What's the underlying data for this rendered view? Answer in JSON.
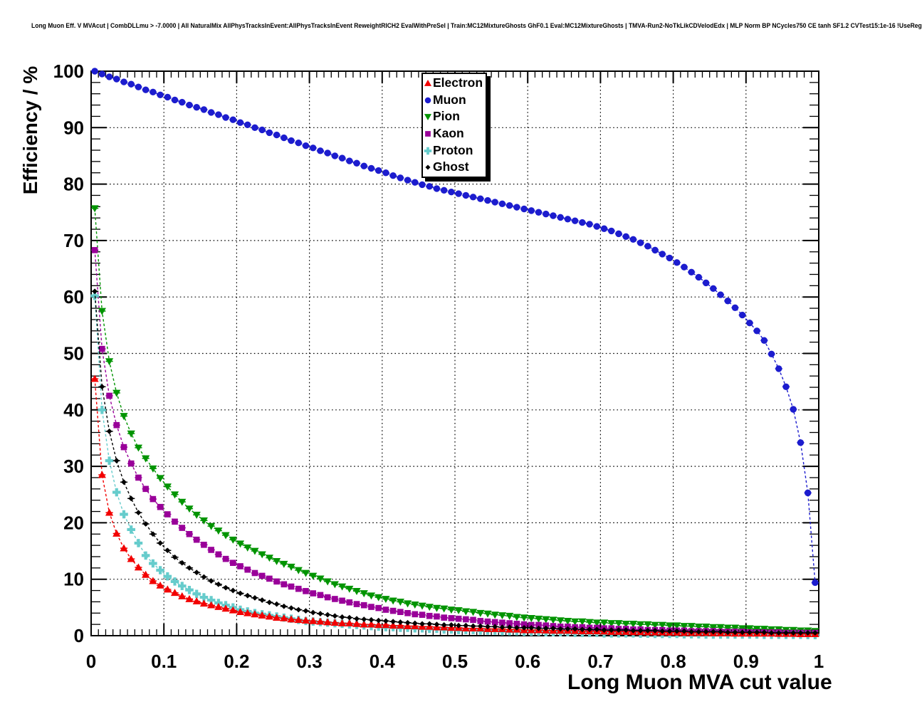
{
  "header": {
    "title": "Long Muon Eff. V MVAcut | CombDLLmu > -7.0000 | All NaturalMix AllPhysTracksInEvent:AllPhysTracksInEvent ReweightRICH2 EvalWithPreSel | Train:MC12MixtureGhosts GhF0.1 Eval:MC12MixtureGhosts | TMVA-Run2-NoTkLikCDVelodEdx | MLP Norm BP NCycles750 CE tanh SF1.2 CVTest15:1e-16 !UseReg"
  },
  "chart_data": {
    "type": "scatter",
    "title": "Long Muon Eff. V MVAcut",
    "xlabel": "Long Muon MVA cut value",
    "ylabel": "Efficiency / %",
    "xlim": [
      0,
      1
    ],
    "ylim": [
      0,
      100
    ],
    "grid": "dotted-major",
    "legend_position": "top-center",
    "frame_color": "#000000",
    "background_color": "#ffffff",
    "x_ticks": [
      0,
      0.1,
      0.2,
      0.3,
      0.4,
      0.5,
      0.6,
      0.7,
      0.8,
      0.9,
      1
    ],
    "x_tick_labels": [
      "0",
      "0.1",
      "0.2",
      "0.3",
      "0.4",
      "0.5",
      "0.6",
      "0.7",
      "0.8",
      "0.9",
      "1"
    ],
    "y_ticks": [
      0,
      10,
      20,
      30,
      40,
      50,
      60,
      70,
      80,
      90,
      100
    ],
    "y_tick_labels": [
      "0",
      "10",
      "20",
      "30",
      "40",
      "50",
      "60",
      "70",
      "80",
      "90",
      "100"
    ],
    "x_minor_step": 0.01,
    "y_minor_step": 2,
    "x": [
      0.005,
      0.015,
      0.025,
      0.035,
      0.045,
      0.055,
      0.065,
      0.075,
      0.085,
      0.095,
      0.105,
      0.115,
      0.125,
      0.135,
      0.145,
      0.155,
      0.165,
      0.175,
      0.185,
      0.195,
      0.205,
      0.215,
      0.225,
      0.235,
      0.245,
      0.255,
      0.265,
      0.275,
      0.285,
      0.295,
      0.305,
      0.315,
      0.325,
      0.335,
      0.345,
      0.355,
      0.365,
      0.375,
      0.385,
      0.395,
      0.405,
      0.415,
      0.425,
      0.435,
      0.445,
      0.455,
      0.465,
      0.475,
      0.485,
      0.495,
      0.505,
      0.515,
      0.525,
      0.535,
      0.545,
      0.555,
      0.565,
      0.575,
      0.585,
      0.595,
      0.605,
      0.615,
      0.625,
      0.635,
      0.645,
      0.655,
      0.665,
      0.675,
      0.685,
      0.695,
      0.705,
      0.715,
      0.725,
      0.735,
      0.745,
      0.755,
      0.765,
      0.775,
      0.785,
      0.795,
      0.805,
      0.815,
      0.825,
      0.835,
      0.845,
      0.855,
      0.865,
      0.875,
      0.885,
      0.895,
      0.905,
      0.915,
      0.925,
      0.935,
      0.945,
      0.955,
      0.965,
      0.975,
      0.985,
      0.995
    ],
    "series": [
      {
        "name": "Electron",
        "color": "#f20000",
        "marker": "triangle-up",
        "values": [
          45.5,
          28.5,
          21.8,
          18.1,
          15.5,
          13.6,
          12.1,
          10.8,
          9.7,
          8.9,
          8.2,
          7.6,
          7.0,
          6.5,
          6.1,
          5.7,
          5.4,
          5.1,
          4.8,
          4.5,
          4.2,
          4.0,
          3.8,
          3.6,
          3.4,
          3.2,
          3.1,
          2.9,
          2.8,
          2.7,
          2.6,
          2.5,
          2.4,
          2.3,
          2.2,
          2.2,
          2.1,
          2.0,
          2.0,
          1.9,
          1.9,
          1.8,
          1.8,
          1.7,
          1.7,
          1.6,
          1.6,
          1.5,
          1.5,
          1.4,
          1.4,
          1.3,
          1.3,
          1.3,
          1.2,
          1.2,
          1.2,
          1.1,
          1.1,
          1.0,
          1.0,
          1.0,
          0.95,
          0.9,
          0.9,
          0.9,
          0.85,
          0.8,
          0.8,
          0.8,
          0.75,
          0.7,
          0.7,
          0.7,
          0.65,
          0.65,
          0.6,
          0.6,
          0.6,
          0.55,
          0.55,
          0.5,
          0.5,
          0.5,
          0.5,
          0.45,
          0.45,
          0.45,
          0.4,
          0.4,
          0.4,
          0.4,
          0.4,
          0.4,
          0.35,
          0.35,
          0.35,
          0.3,
          0.3,
          0.3
        ]
      },
      {
        "name": "Muon",
        "color": "#1c1cce",
        "marker": "circle",
        "values": [
          100.0,
          99.5,
          99.0,
          98.6,
          98.1,
          97.7,
          97.2,
          96.7,
          96.3,
          95.8,
          95.4,
          94.9,
          94.5,
          94.0,
          93.6,
          93.2,
          92.7,
          92.3,
          91.8,
          91.4,
          90.9,
          90.5,
          90.0,
          89.6,
          89.1,
          88.7,
          88.2,
          87.7,
          87.3,
          86.8,
          86.4,
          85.9,
          85.5,
          85.0,
          84.6,
          84.1,
          83.7,
          83.2,
          82.8,
          82.4,
          82.0,
          81.5,
          81.1,
          80.7,
          80.3,
          79.9,
          79.6,
          79.2,
          78.9,
          78.6,
          78.3,
          78.0,
          77.7,
          77.4,
          77.1,
          76.8,
          76.5,
          76.2,
          75.9,
          75.6,
          75.3,
          75.0,
          74.7,
          74.4,
          74.1,
          73.8,
          73.5,
          73.2,
          72.9,
          72.5,
          72.1,
          71.7,
          71.2,
          70.7,
          70.2,
          69.6,
          69.0,
          68.3,
          67.6,
          66.9,
          66.1,
          65.3,
          64.4,
          63.5,
          62.5,
          61.5,
          60.4,
          59.3,
          58.1,
          56.8,
          55.4,
          54.0,
          52.3,
          49.9,
          47.3,
          44.1,
          40.1,
          34.2,
          25.3,
          9.4
        ]
      },
      {
        "name": "Pion",
        "color": "#009400",
        "marker": "triangle-down",
        "values": [
          75.7,
          57.5,
          48.6,
          43.0,
          38.9,
          35.8,
          33.3,
          31.4,
          29.6,
          27.9,
          26.4,
          25.0,
          23.7,
          22.5,
          21.4,
          20.4,
          19.4,
          18.6,
          17.8,
          17.0,
          16.3,
          15.6,
          15.0,
          14.4,
          13.8,
          13.2,
          12.7,
          12.2,
          11.6,
          11.1,
          10.6,
          10.1,
          9.6,
          9.1,
          8.7,
          8.3,
          7.9,
          7.5,
          7.1,
          6.8,
          6.5,
          6.2,
          6.0,
          5.7,
          5.5,
          5.3,
          5.1,
          4.9,
          4.8,
          4.6,
          4.5,
          4.3,
          4.2,
          4.0,
          3.9,
          3.7,
          3.6,
          3.5,
          3.3,
          3.2,
          3.1,
          3.0,
          2.9,
          2.8,
          2.7,
          2.6,
          2.5,
          2.5,
          2.4,
          2.3,
          2.3,
          2.2,
          2.2,
          2.1,
          2.1,
          2.0,
          2.0,
          1.9,
          1.9,
          1.8,
          1.8,
          1.7,
          1.7,
          1.6,
          1.6,
          1.5,
          1.5,
          1.4,
          1.4,
          1.3,
          1.3,
          1.2,
          1.2,
          1.1,
          1.1,
          1.0,
          1.0,
          0.9,
          0.9,
          0.8
        ]
      },
      {
        "name": "Kaon",
        "color": "#990099",
        "marker": "square",
        "values": [
          68.3,
          50.8,
          42.5,
          37.3,
          33.4,
          30.5,
          28.0,
          26.0,
          24.2,
          22.8,
          21.5,
          20.2,
          19.1,
          18.0,
          17.0,
          16.1,
          15.2,
          14.4,
          13.6,
          12.9,
          12.3,
          11.7,
          11.1,
          10.6,
          10.1,
          9.6,
          9.1,
          8.7,
          8.3,
          7.9,
          7.5,
          7.2,
          6.8,
          6.5,
          6.2,
          5.9,
          5.6,
          5.4,
          5.1,
          4.9,
          4.6,
          4.4,
          4.2,
          4.0,
          3.8,
          3.7,
          3.5,
          3.4,
          3.2,
          3.1,
          3.0,
          2.9,
          2.8,
          2.6,
          2.5,
          2.4,
          2.3,
          2.2,
          2.1,
          2.0,
          1.9,
          1.9,
          1.8,
          1.7,
          1.6,
          1.6,
          1.5,
          1.5,
          1.4,
          1.4,
          1.3,
          1.3,
          1.2,
          1.2,
          1.1,
          1.1,
          1.0,
          1.0,
          1.0,
          0.9,
          0.9,
          0.9,
          0.8,
          0.8,
          0.8,
          0.8,
          0.7,
          0.7,
          0.7,
          0.7,
          0.6,
          0.6,
          0.6,
          0.6,
          0.6,
          0.5,
          0.5,
          0.5,
          0.5,
          0.5
        ]
      },
      {
        "name": "Proton",
        "color": "#66cccc",
        "marker": "cross",
        "values": [
          60.2,
          40.0,
          31.0,
          25.4,
          21.5,
          18.8,
          16.4,
          14.2,
          12.8,
          11.6,
          10.5,
          9.6,
          8.8,
          8.1,
          7.4,
          6.8,
          6.3,
          5.8,
          5.4,
          5.0,
          4.6,
          4.3,
          4.0,
          3.8,
          3.6,
          3.4,
          3.2,
          3.0,
          2.8,
          2.6,
          2.5,
          2.4,
          2.3,
          2.2,
          2.1,
          2.0,
          1.9,
          1.8,
          1.7,
          1.6,
          1.5,
          1.5,
          1.4,
          1.4,
          1.3,
          1.3,
          1.2,
          1.2,
          1.1,
          1.1,
          1.0,
          1.0,
          1.0,
          0.9,
          0.9,
          0.9,
          0.8,
          0.8,
          0.8,
          0.7,
          0.7,
          0.7,
          0.6,
          0.6,
          0.6,
          0.6,
          0.5,
          0.5,
          0.5,
          0.5,
          0.4,
          0.4,
          0.4,
          0.4,
          0.4,
          0.35,
          0.35,
          0.3,
          0.3,
          0.3,
          0.3,
          0.25,
          0.25,
          0.25,
          0.2,
          0.2,
          0.2,
          0.2,
          0.2,
          0.2,
          0.2,
          0.2,
          0.15,
          0.15,
          0.15,
          0.15,
          0.15,
          0.15,
          0.1,
          0.1
        ]
      },
      {
        "name": "Ghost",
        "color": "#000000",
        "marker": "diamond",
        "values": [
          61.0,
          44.1,
          36.2,
          31.0,
          27.2,
          24.3,
          21.8,
          19.8,
          18.0,
          16.4,
          15.1,
          13.9,
          12.9,
          12.0,
          11.2,
          10.4,
          9.7,
          9.1,
          8.5,
          8.0,
          7.5,
          7.1,
          6.7,
          6.3,
          5.9,
          5.6,
          5.2,
          4.9,
          4.6,
          4.4,
          4.1,
          3.9,
          3.7,
          3.5,
          3.3,
          3.2,
          3.0,
          2.9,
          2.8,
          2.7,
          2.6,
          2.5,
          2.4,
          2.3,
          2.2,
          2.1,
          2.1,
          2.0,
          1.9,
          1.9,
          1.8,
          1.8,
          1.7,
          1.7,
          1.6,
          1.6,
          1.5,
          1.5,
          1.4,
          1.4,
          1.4,
          1.3,
          1.3,
          1.3,
          1.2,
          1.2,
          1.2,
          1.1,
          1.1,
          1.1,
          1.0,
          1.0,
          1.0,
          1.0,
          0.9,
          0.9,
          0.9,
          0.9,
          0.8,
          0.8,
          0.8,
          0.8,
          0.7,
          0.7,
          0.7,
          0.7,
          0.7,
          0.6,
          0.6,
          0.6,
          0.6,
          0.6,
          0.6,
          0.5,
          0.5,
          0.5,
          0.5,
          0.5,
          0.5,
          0.5
        ]
      }
    ]
  }
}
